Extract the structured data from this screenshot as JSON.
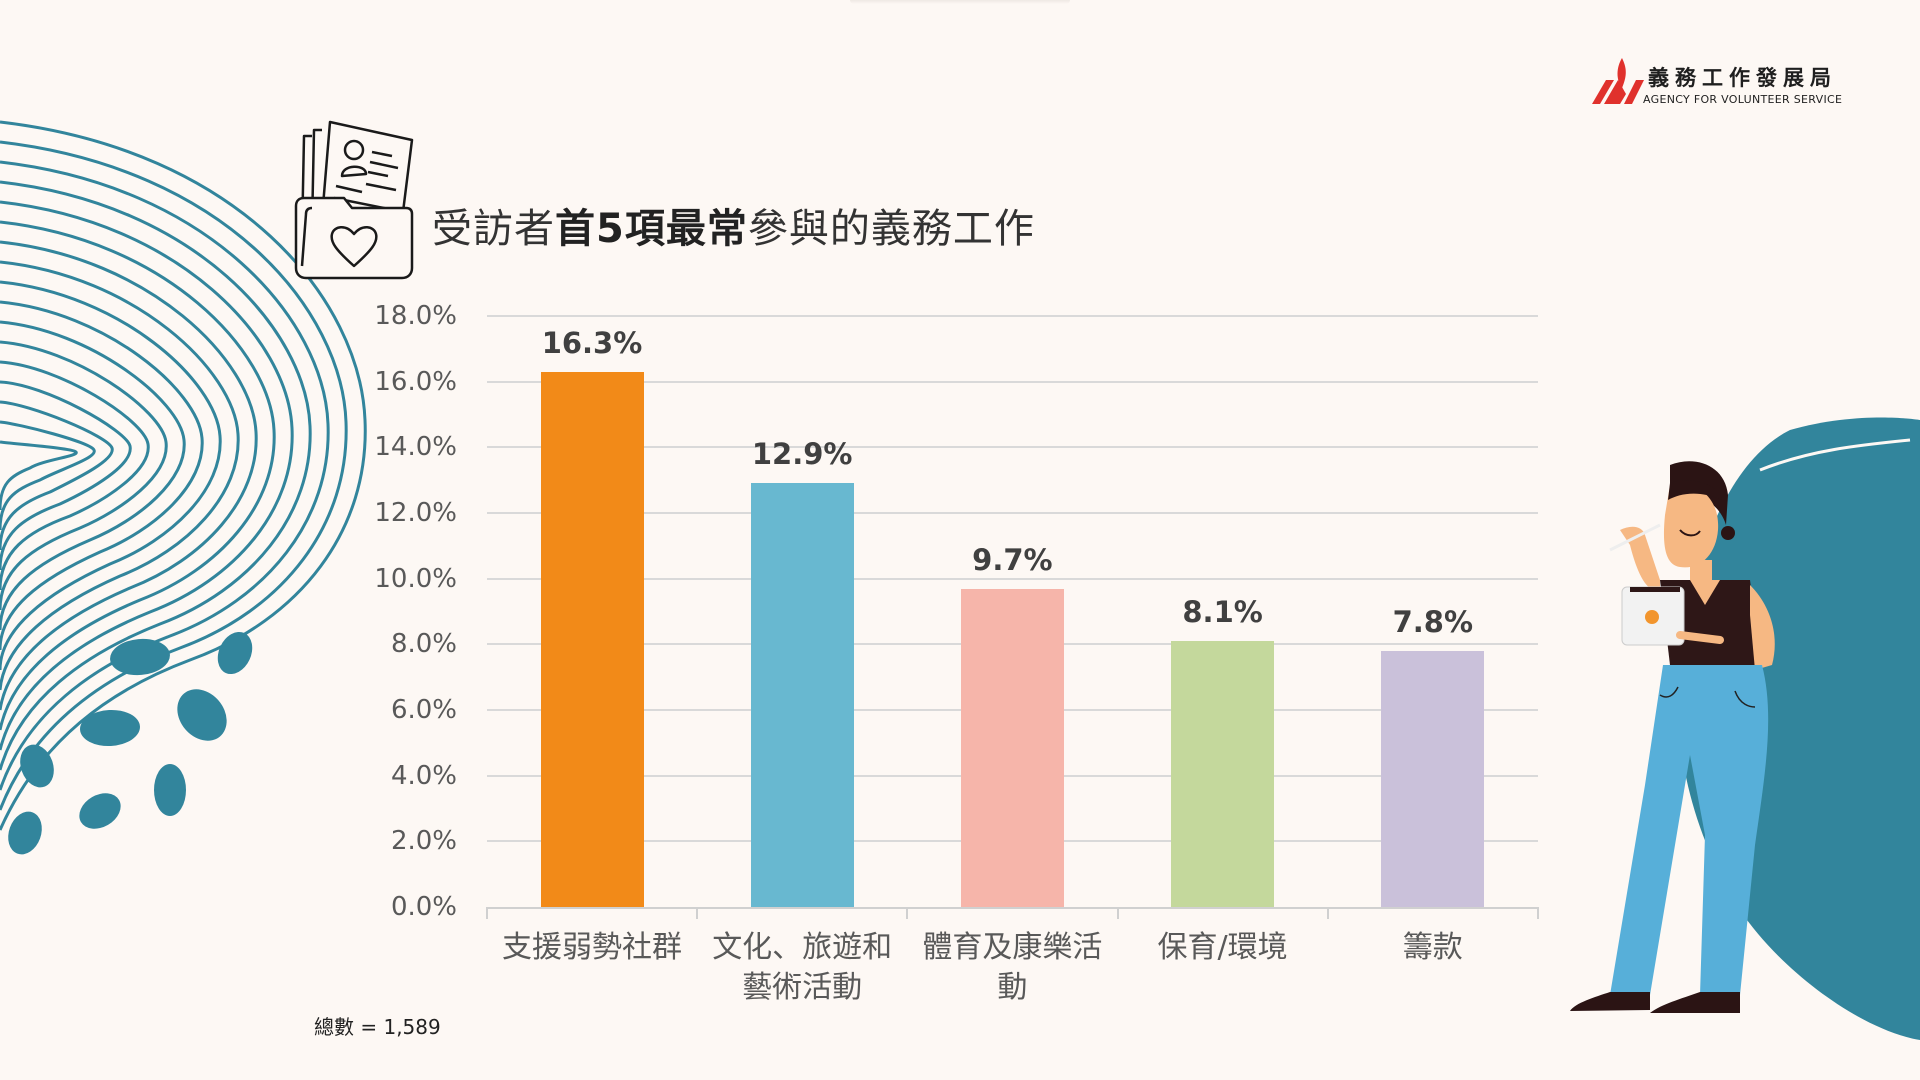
{
  "logo": {
    "name_zh": "義務工作發展局",
    "name_en": "AGENCY  FOR  VOLUNTEER  SERVICE",
    "color": "#e0312c"
  },
  "title": {
    "part1": "受訪者",
    "part2_bold": "首5項最常",
    "part3": "參與的義務工作",
    "icon": "folder-with-resume-heart-icon"
  },
  "footnote": "總數 = 1,589",
  "decorations": {
    "accent_color": "#32859c",
    "left": "concentric-wave-lines-with-dots",
    "right": "brush-circle-with-woman-holding-tablet"
  },
  "chart_data": {
    "type": "bar",
    "title": "受訪者首5項最常參與的義務工作",
    "xlabel": "",
    "ylabel": "",
    "categories": [
      "支援弱勢社群",
      "文化、旅遊和藝術活動",
      "體育及康樂活動",
      "保育/環境",
      "籌款"
    ],
    "category_lines": [
      [
        "支援弱勢社群"
      ],
      [
        "文化、旅遊和",
        "藝術活動"
      ],
      [
        "體育及康樂活",
        "動"
      ],
      [
        "保育/環境"
      ],
      [
        "籌款"
      ]
    ],
    "values": [
      16.3,
      12.9,
      9.7,
      8.1,
      7.8
    ],
    "value_labels": [
      "16.3%",
      "12.9%",
      "9.7%",
      "8.1%",
      "7.8%"
    ],
    "colors": [
      "#f28a18",
      "#68b8d0",
      "#f6b5aa",
      "#c4d89c",
      "#cac1da"
    ],
    "ylim": [
      0,
      18
    ],
    "yticks": [
      "0.0%",
      "2.0%",
      "4.0%",
      "6.0%",
      "8.0%",
      "10.0%",
      "12.0%",
      "14.0%",
      "16.0%",
      "18.0%"
    ],
    "ytick_values": [
      0,
      2,
      4,
      6,
      8,
      10,
      12,
      14,
      16,
      18
    ],
    "grid": true,
    "legend": "none",
    "total_n": 1589
  }
}
